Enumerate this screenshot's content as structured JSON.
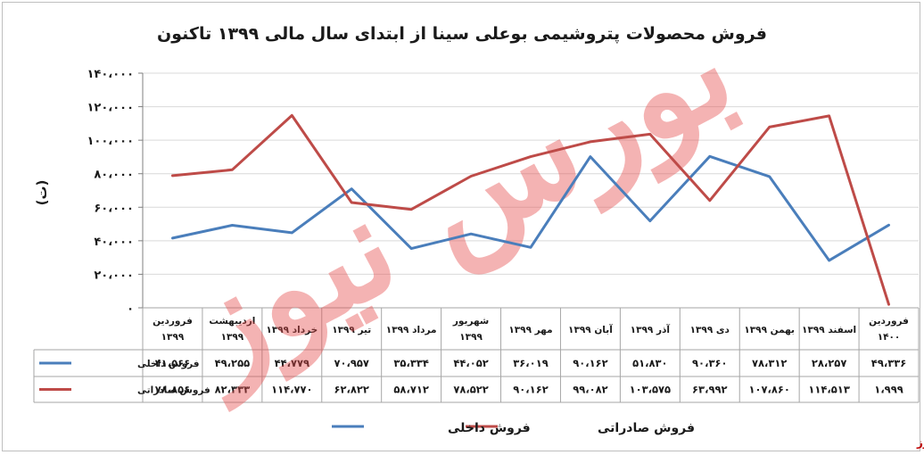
{
  "chart_data": {
    "type": "line",
    "title": "فروش محصولات پتروشیمی بوعلی سینا از ابتدای سال مالی ۱۳۹۹ تاکنون",
    "ylabel": "(ت)",
    "ylim": [
      0,
      140000
    ],
    "yticks": [
      "۰",
      "۲۰،۰۰۰",
      "۴۰،۰۰۰",
      "۶۰،۰۰۰",
      "۸۰،۰۰۰",
      "۱۰۰،۰۰۰",
      "۱۲۰،۰۰۰",
      "۱۴۰،۰۰۰"
    ],
    "categories": [
      [
        "فروردین",
        "۱۳۹۹"
      ],
      [
        "اردیبهشت",
        "۱۳۹۹"
      ],
      [
        "خرداد ۱۳۹۹"
      ],
      [
        "تیر ۱۳۹۹"
      ],
      [
        "مرداد ۱۳۹۹"
      ],
      [
        "شهریور",
        "۱۳۹۹"
      ],
      [
        "مهر ۱۳۹۹"
      ],
      [
        "آبان ۱۳۹۹"
      ],
      [
        "آذر ۱۳۹۹"
      ],
      [
        "دی ۱۳۹۹"
      ],
      [
        "بهمن ۱۳۹۹"
      ],
      [
        "اسفند ۱۳۹۹"
      ],
      [
        "فروردین",
        "۱۴۰۰"
      ]
    ],
    "grid": true,
    "legend_position": "bottom",
    "series": [
      {
        "name": "فروش داخلی",
        "color": "#4a7ebb",
        "values": [
          41566,
          49255,
          44779,
          70957,
          35334,
          44052,
          36019,
          90162,
          51830,
          90360,
          78312,
          28257,
          49336
        ],
        "labels": [
          "۴۱،۵۶۶",
          "۴۹،۲۵۵",
          "۴۴،۷۷۹",
          "۷۰،۹۵۷",
          "۳۵،۳۳۴",
          "۴۴،۰۵۲",
          "۳۶،۰۱۹",
          "۹۰،۱۶۲",
          "۵۱،۸۳۰",
          "۹۰،۳۶۰",
          "۷۸،۳۱۲",
          "۲۸،۲۵۷",
          "۴۹،۳۳۶"
        ]
      },
      {
        "name": "فروش صادراتی",
        "color": "#be4b48",
        "values": [
          78856,
          82333,
          114770,
          62822,
          58712,
          78522,
          90162,
          99082,
          103575,
          63992,
          107860,
          114513,
          1999
        ],
        "labels": [
          "۷۸،۸۵۶",
          "۸۲،۳۳۳",
          "۱۱۴،۷۷۰",
          "۶۲،۸۲۲",
          "۵۸،۷۱۲",
          "۷۸،۵۲۲",
          "۹۰،۱۶۲",
          "۹۹،۰۸۲",
          "۱۰۳،۵۷۵",
          "۶۳،۹۹۲",
          "۱۰۷،۸۶۰",
          "۱۱۴،۵۱۳",
          "۱،۹۹۹"
        ]
      }
    ]
  },
  "watermark": "بورس نیوز",
  "source_label": "بورس نیوز"
}
